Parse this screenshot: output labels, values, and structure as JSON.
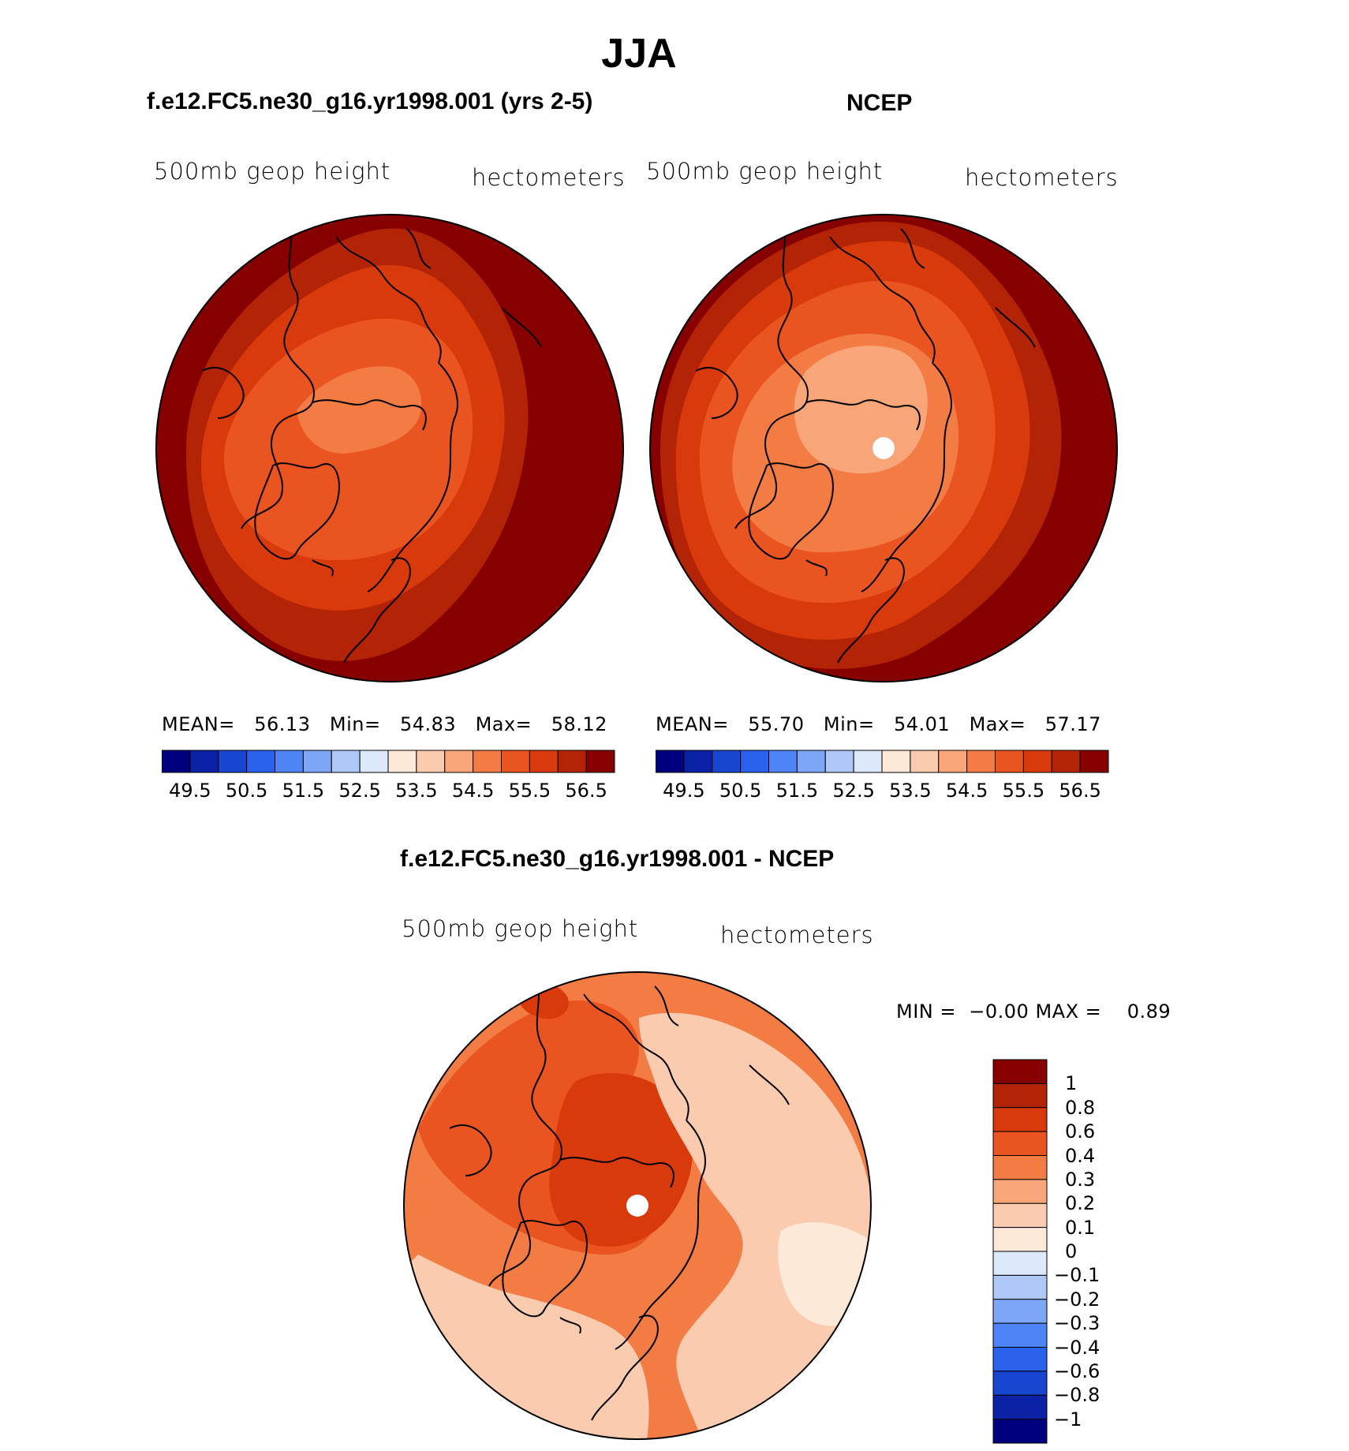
{
  "title": "JJA",
  "panels": [
    {
      "id": "model",
      "title": "f.e12.FC5.ne30_g16.yr1998.001 (yrs 2-5)",
      "left_label": "500mb geop height",
      "right_label": "hectometers",
      "stats": {
        "mean_label": "MEAN=",
        "mean": "56.13",
        "min_label": "Min=",
        "min": "54.83",
        "max_label": "Max=",
        "max": "58.12"
      }
    },
    {
      "id": "obs",
      "title": "NCEP",
      "left_label": "500mb geop height",
      "right_label": "hectometers",
      "stats": {
        "mean_label": "MEAN=",
        "mean": "55.70",
        "min_label": "Min=",
        "min": "54.01",
        "max_label": "Max=",
        "max": "57.17"
      }
    },
    {
      "id": "diff",
      "title": "f.e12.FC5.ne30_g16.yr1998.001 - NCEP",
      "left_label": "500mb geop height",
      "right_label": "hectometers",
      "stats": {
        "min_label": "MIN =",
        "min": "−0.00",
        "max_label": "MAX =",
        "max": "0.89"
      }
    }
  ],
  "colorbar_field": {
    "colors": [
      "#00007f",
      "#0b22a6",
      "#1846d0",
      "#2a62ee",
      "#4e84f5",
      "#7ea6f7",
      "#aec9f8",
      "#dbe9fb",
      "#fde9d8",
      "#fbcbb0",
      "#f8a679",
      "#f37b44",
      "#ea5420",
      "#d93a0c",
      "#b32305",
      "#870000"
    ],
    "tick_labels": [
      "49.5",
      "50.5",
      "51.5",
      "52.5",
      "53.5",
      "54.5",
      "55.5",
      "56.5"
    ]
  },
  "colorbar_diff": {
    "colors": [
      "#00007f",
      "#0b22a6",
      "#1846d0",
      "#2a62ee",
      "#4e84f5",
      "#7ea6f7",
      "#aec9f8",
      "#dbe9fb",
      "#fde9d8",
      "#fbcbb0",
      "#f8a679",
      "#f37b44",
      "#ea5420",
      "#d93a0c",
      "#b32305",
      "#870000"
    ],
    "tick_labels": [
      "1",
      "0.8",
      "0.6",
      "0.4",
      "0.3",
      "0.2",
      "0.1",
      "0",
      "−0.1",
      "−0.2",
      "−0.3",
      "−0.4",
      "−0.6",
      "−0.8",
      "−1"
    ]
  },
  "map_colors": {
    "field_outer": "#870000",
    "field_l2": "#b32305",
    "field_l3": "#d93a0c",
    "field_l4": "#ea5420",
    "field_l5": "#f37b44",
    "field_l6": "#f8a679",
    "diff_base": "#f37b44",
    "diff_mid": "#ea5420",
    "diff_high": "#d93a0c",
    "diff_low": "#fbcbb0",
    "diff_lowest": "#fde9d8",
    "pole_hole": "#ffffff",
    "coast": "#000000"
  }
}
